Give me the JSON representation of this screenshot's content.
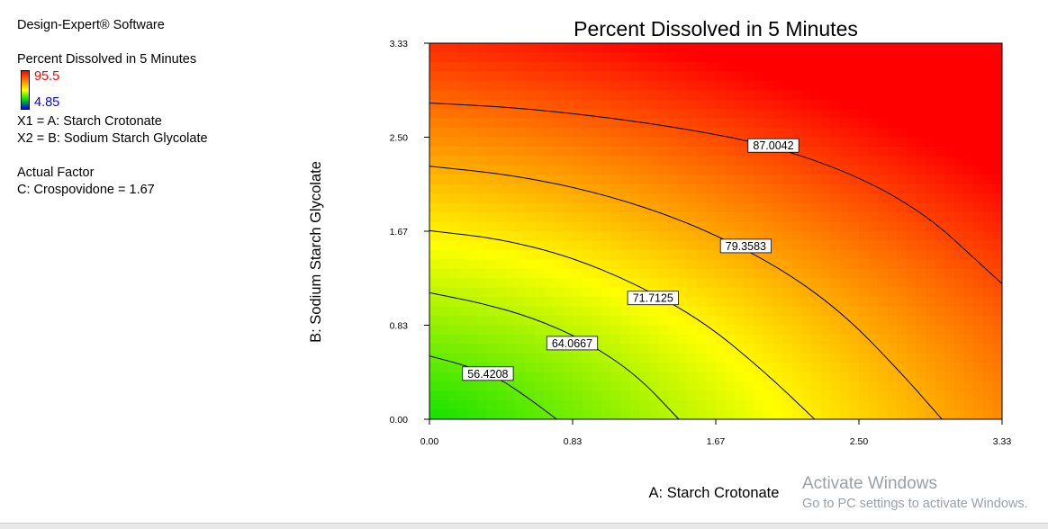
{
  "app": {
    "title": "Design-Expert® Software"
  },
  "legend": {
    "response": "Percent Dissolved in 5 Minutes",
    "scale_max": "95.5",
    "scale_min": "4.85",
    "scale_max_color": "#ff0000",
    "scale_min_color": "#0000ff",
    "x1": "X1 = A: Starch Crotonate",
    "x2": "X2 = B: Sodium Starch Glycolate",
    "actual_factor_heading": "Actual Factor",
    "actual_factor": "C: Crospovidone = 1.67"
  },
  "watermark": {
    "line1": "Activate Windows",
    "line2": "Go to PC settings to activate Windows."
  },
  "chart_data": {
    "type": "heatmap",
    "title": "Percent Dissolved in 5 Minutes",
    "xlabel": "A: Starch Crotonate",
    "ylabel": "B: Sodium Starch Glycolate",
    "xlim": [
      0,
      3.33
    ],
    "ylim": [
      0,
      3.33
    ],
    "x_ticks": [
      "0.00",
      "0.83",
      "1.67",
      "2.50",
      "3.33"
    ],
    "y_ticks": [
      "0.00",
      "0.83",
      "1.67",
      "2.50",
      "3.33"
    ],
    "color_scale": [
      "#00e000",
      "#ffff00",
      "#ff0000"
    ],
    "contours": [
      {
        "level": "56.4208",
        "label_at": [
          0.34,
          0.4
        ],
        "points": [
          [
            0,
            0.56
          ],
          [
            0.2,
            0.48
          ],
          [
            0.4,
            0.37
          ],
          [
            0.6,
            0.16
          ],
          [
            0.74,
            0
          ]
        ]
      },
      {
        "level": "64.0667",
        "label_at": [
          0.83,
          0.67
        ],
        "points": [
          [
            0,
            1.12
          ],
          [
            0.3,
            1.03
          ],
          [
            0.6,
            0.9
          ],
          [
            0.9,
            0.7
          ],
          [
            1.2,
            0.4
          ],
          [
            1.45,
            0
          ]
        ]
      },
      {
        "level": "71.7125",
        "label_at": [
          1.3,
          1.07
        ],
        "points": [
          [
            0,
            1.67
          ],
          [
            0.4,
            1.6
          ],
          [
            0.8,
            1.45
          ],
          [
            1.2,
            1.2
          ],
          [
            1.6,
            0.86
          ],
          [
            1.95,
            0.42
          ],
          [
            2.24,
            0
          ]
        ]
      },
      {
        "level": "79.3583",
        "label_at": [
          1.84,
          1.53
        ],
        "points": [
          [
            0,
            2.24
          ],
          [
            0.5,
            2.16
          ],
          [
            1.0,
            2.0
          ],
          [
            1.5,
            1.75
          ],
          [
            2.0,
            1.38
          ],
          [
            2.4,
            0.95
          ],
          [
            2.75,
            0.4
          ],
          [
            2.98,
            0
          ]
        ]
      },
      {
        "level": "87.0042",
        "label_at": [
          2.0,
          2.42
        ],
        "points": [
          [
            0,
            2.8
          ],
          [
            0.5,
            2.76
          ],
          [
            1.0,
            2.68
          ],
          [
            1.5,
            2.57
          ],
          [
            2.0,
            2.42
          ],
          [
            2.5,
            2.15
          ],
          [
            2.9,
            1.8
          ],
          [
            3.2,
            1.38
          ],
          [
            3.33,
            1.2
          ]
        ]
      }
    ]
  }
}
